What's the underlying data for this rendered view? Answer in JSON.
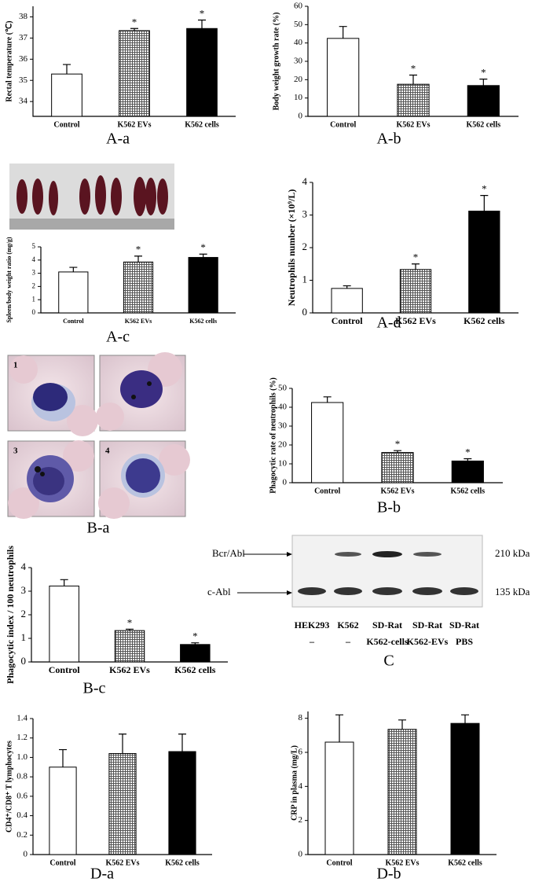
{
  "chart_data": [
    {
      "type": "bar",
      "panel": "A-a",
      "ylabel": "Rectal temperature (℃)",
      "categories": [
        "Control",
        "K562 EVs",
        "K562 cells"
      ],
      "values": [
        35.3,
        37.35,
        37.45
      ],
      "errors": [
        0.45,
        0.1,
        0.4
      ],
      "markers": [
        null,
        "*",
        "*"
      ],
      "colors": [
        "#ffffff",
        "#555555",
        "#000000"
      ],
      "hatch": [
        false,
        true,
        false
      ],
      "ylim": [
        33.3,
        38.5
      ],
      "yticks": [
        34,
        35,
        36,
        37,
        38
      ]
    },
    {
      "type": "bar",
      "panel": "A-b",
      "ylabel": "Body weight growth rate (%)",
      "categories": [
        "Control",
        "K562 EVs",
        "K562 cells"
      ],
      "values": [
        42.5,
        17.5,
        16.8
      ],
      "errors": [
        6.5,
        5,
        3.5
      ],
      "markers": [
        null,
        "*",
        "*"
      ],
      "colors": [
        "#ffffff",
        "#555555",
        "#000000"
      ],
      "hatch": [
        false,
        true,
        false
      ],
      "ylim": [
        0,
        60
      ],
      "yticks": [
        0,
        10,
        20,
        30,
        40,
        50,
        60
      ]
    },
    {
      "type": "bar",
      "panel": "A-c",
      "ylabel": "Spleen/body weight ratio (mg/g)",
      "categories": [
        "Control",
        "K562 EVs",
        "K562 cells"
      ],
      "values": [
        3.1,
        3.85,
        4.2
      ],
      "errors": [
        0.35,
        0.45,
        0.25
      ],
      "markers": [
        null,
        "*",
        "*"
      ],
      "colors": [
        "#ffffff",
        "#555555",
        "#000000"
      ],
      "hatch": [
        false,
        true,
        false
      ],
      "ylim": [
        0,
        5
      ],
      "yticks": [
        0,
        1,
        2,
        3,
        4,
        5
      ]
    },
    {
      "type": "bar",
      "panel": "A-d",
      "ylabel": "Neutrophils number (×10⁹/L)",
      "categories": [
        "Control",
        "K562 EVs",
        "K562 cells"
      ],
      "values": [
        0.75,
        1.33,
        3.12
      ],
      "errors": [
        0.08,
        0.17,
        0.48
      ],
      "markers": [
        null,
        "*",
        "*"
      ],
      "colors": [
        "#ffffff",
        "#555555",
        "#000000"
      ],
      "hatch": [
        false,
        true,
        false
      ],
      "ylim": [
        0,
        4
      ],
      "yticks": [
        0,
        1,
        2,
        3,
        4
      ]
    },
    {
      "type": "bar",
      "panel": "B-b",
      "ylabel": "Phagocytic rate of neutrophils (%)",
      "categories": [
        "Control",
        "K562 EVs",
        "K562 cells"
      ],
      "values": [
        42.5,
        16,
        11.5
      ],
      "errors": [
        3,
        1,
        1.2
      ],
      "markers": [
        null,
        "*",
        "*"
      ],
      "colors": [
        "#ffffff",
        "#555555",
        "#000000"
      ],
      "hatch": [
        false,
        true,
        false
      ],
      "ylim": [
        0,
        50
      ],
      "yticks": [
        0,
        10,
        20,
        30,
        40,
        50
      ]
    },
    {
      "type": "bar",
      "panel": "B-c",
      "ylabel": "Phagocytic index / 100 neutrophils",
      "categories": [
        "Control",
        "K562 EVs",
        "K562 cells"
      ],
      "values": [
        3.22,
        1.33,
        0.74
      ],
      "errors": [
        0.27,
        0.06,
        0.07
      ],
      "markers": [
        null,
        "*",
        "*"
      ],
      "colors": [
        "#ffffff",
        "#555555",
        "#000000"
      ],
      "hatch": [
        false,
        true,
        false
      ],
      "ylim": [
        0,
        4
      ],
      "yticks": [
        0,
        1,
        2,
        3,
        4
      ]
    },
    {
      "type": "bar",
      "panel": "D-a",
      "ylabel": "CD4⁺/CD8⁺ T lymphocytes",
      "categories": [
        "Control",
        "K562 EVs",
        "K562 cells"
      ],
      "values": [
        0.9,
        1.04,
        1.06
      ],
      "errors": [
        0.18,
        0.2,
        0.18
      ],
      "markers": [
        null,
        null,
        null
      ],
      "colors": [
        "#ffffff",
        "#555555",
        "#000000"
      ],
      "hatch": [
        false,
        true,
        false
      ],
      "ylim": [
        0,
        1.4
      ],
      "yticks": [
        0,
        0.2,
        0.4,
        0.6,
        0.8,
        {
          "value": 1,
          "label": "1.0"
        },
        1.2,
        1.4
      ]
    },
    {
      "type": "bar",
      "panel": "D-b",
      "ylabel": "CRP in plasma (mg/L)",
      "categories": [
        "Control",
        "K562 EVs",
        "K562 cells"
      ],
      "values": [
        6.6,
        7.35,
        7.7
      ],
      "errors": [
        1.6,
        0.55,
        0.5
      ],
      "markers": [
        null,
        null,
        null
      ],
      "colors": [
        "#ffffff",
        "#555555",
        "#000000"
      ],
      "hatch": [
        false,
        true,
        false
      ],
      "ylim": [
        0,
        8.4
      ],
      "yticks": [
        0,
        2,
        4,
        6,
        8
      ]
    }
  ],
  "micrographs": {
    "panel": "B-a",
    "labels": [
      "1",
      "3",
      "4"
    ]
  },
  "blot": {
    "panel": "C",
    "left_labels": [
      "Bcr/Abl",
      "c-Abl"
    ],
    "right_labels": [
      "210 kDa",
      "135 kDa"
    ],
    "lanes": [
      [
        "HEK293",
        "–"
      ],
      [
        "K562",
        "–"
      ],
      [
        "SD-Rat",
        "K562-cells"
      ],
      [
        "SD-Rat",
        "K562-EVs"
      ],
      [
        "SD-Rat",
        "PBS"
      ]
    ]
  }
}
